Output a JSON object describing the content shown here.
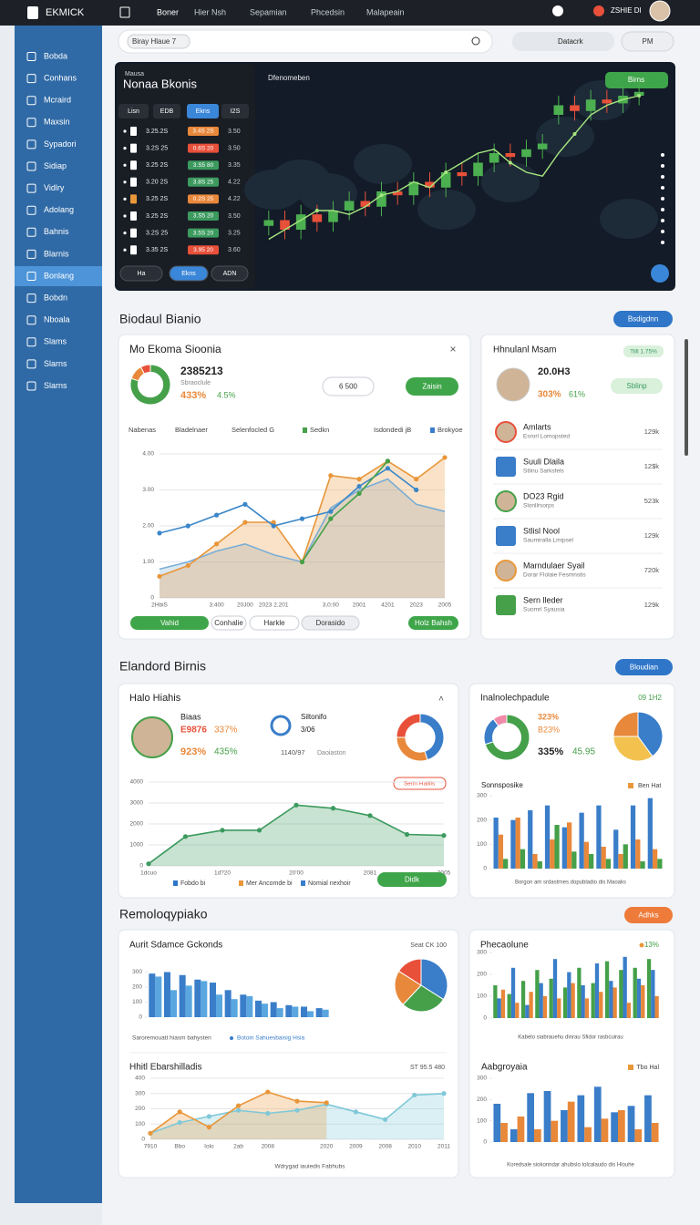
{
  "topbar": {
    "logo": "EKMICK",
    "nav": [
      "Boner",
      "Hier Nsh",
      "Sepamian",
      "Phcedsin",
      "Malapeain"
    ],
    "user": "ZSHIE DI"
  },
  "sidebar": {
    "items": [
      "Bobda",
      "Conhans",
      "Mcraird",
      "Maxsin",
      "Sypadori",
      "Sidiap",
      "Vidlry",
      "Adolang",
      "Bahnis",
      "Blarnis",
      "Bonlang",
      "Bobdn",
      "Nboala",
      "Slams",
      "Slarns",
      "Slarns"
    ],
    "active": 10
  },
  "search": {
    "placeholder": "Biray Hlaue 7",
    "filter": "Datacrk",
    "button": "PM"
  },
  "market": {
    "kicker": "Mausa",
    "title": "Nonaa Bkonis",
    "tabs": [
      "Lisn",
      "EDB",
      "Ekns",
      "I2S"
    ],
    "active_tab": 2,
    "rows": [
      {
        "cells": [
          "3.25.2S",
          "3.4S 2S",
          "3.50"
        ],
        "color": "#e8883a"
      },
      {
        "cells": [
          "3.2S 25",
          "0.6S 20",
          "3.50"
        ],
        "color": "#e8503a"
      },
      {
        "cells": [
          "3.25 2S",
          "3.S5 80",
          "3.35"
        ],
        "color": "#3c9a5f"
      },
      {
        "cells": [
          "3.20 2S",
          "3.8S 25",
          "4.22"
        ],
        "color": "#3c9a5f"
      },
      {
        "cells": [
          "3.25 2S",
          "0.2S 25",
          "4.22"
        ],
        "color": "#e8883a"
      },
      {
        "cells": [
          "3.25 2S",
          "3.S5 20",
          "3.50"
        ],
        "color": "#3c9a5f"
      },
      {
        "cells": [
          "3.2S 25",
          "3.5S 20",
          "3.25"
        ],
        "color": "#3c9a5f"
      },
      {
        "cells": [
          "3.35 2S",
          "3.95 20",
          "3.60"
        ],
        "color": "#e8503a"
      }
    ],
    "footer": [
      "Ha",
      "Ekns",
      "ADN"
    ],
    "chart_title": "Dfenomeben",
    "badge": "Birns",
    "chart": {
      "type": "candlestick",
      "up_color": "#4caf50",
      "down_color": "#e8503a",
      "ylim": [
        0,
        100
      ],
      "open": [
        22,
        25,
        20,
        28,
        24,
        30,
        35,
        32,
        40,
        38,
        45,
        42,
        50,
        48,
        55,
        60,
        58,
        62,
        80,
        85,
        82,
        88,
        86,
        90
      ],
      "close": [
        25,
        20,
        28,
        24,
        30,
        35,
        32,
        40,
        38,
        45,
        42,
        50,
        48,
        55,
        60,
        58,
        62,
        65,
        85,
        82,
        88,
        86,
        90,
        92
      ],
      "high": [
        30,
        30,
        33,
        33,
        35,
        40,
        40,
        45,
        45,
        50,
        50,
        55,
        55,
        60,
        65,
        65,
        67,
        70,
        90,
        90,
        93,
        93,
        95,
        97
      ],
      "low": [
        17,
        15,
        15,
        19,
        19,
        25,
        27,
        27,
        33,
        33,
        37,
        37,
        43,
        43,
        50,
        53,
        53,
        57,
        75,
        77,
        77,
        81,
        81,
        85
      ],
      "trend": {
        "color": "#a6e67f",
        "values": [
          15,
          20,
          25,
          30,
          30,
          28,
          32,
          38,
          40,
          45,
          42,
          50,
          55,
          60,
          62,
          55,
          50,
          48,
          60,
          70,
          80,
          85,
          88,
          90
        ]
      }
    }
  },
  "section1": {
    "heading": "Biodaul Bianio",
    "button": "Bsdigdnn"
  },
  "card_a": {
    "title": "Mo Ekoma Sioonia",
    "value": "2385213",
    "sub": "Sbraoclule",
    "pct1": "433%",
    "pct2": "4.5%",
    "buttons": [
      "6 500",
      "Zaisin"
    ],
    "header": [
      "Nabenas",
      "Bladelnaer",
      "Selenfocled G",
      "Sedkn",
      "Isdondedi jB",
      "Brokyoe"
    ],
    "donut": {
      "type": "pie",
      "donut": true,
      "values": [
        80,
        12,
        8
      ],
      "colors": [
        "#45a049",
        "#e8883a",
        "#e8503a"
      ]
    },
    "chart": {
      "type": "line",
      "grid": true,
      "categories": [
        "2HbiS",
        null,
        "3:400",
        "20J00",
        "2023 2.201",
        null,
        "3,0:00",
        "2001",
        "4201",
        "2023",
        "2005"
      ],
      "ylim": [
        0,
        4
      ],
      "yticks": [
        0,
        {
          "value": 1,
          "label": "1.00"
        },
        {
          "value": 2,
          "label": "2.00"
        },
        {
          "value": 3,
          "label": "3.00"
        },
        {
          "value": 4,
          "label": "4.00"
        }
      ],
      "series": [
        {
          "color": "#7aaed6",
          "area": true,
          "values": [
            0.8,
            1.0,
            1.3,
            1.5,
            1.2,
            1.0,
            2.5,
            3.0,
            3.3,
            2.6,
            2.4
          ]
        },
        {
          "color": "#e8963a",
          "area": true,
          "markers": true,
          "values": [
            0.6,
            0.9,
            1.5,
            2.1,
            2.1,
            1.0,
            3.4,
            3.3,
            3.8,
            3.3,
            3.9
          ]
        },
        {
          "color": "#3a86c8",
          "markers": true,
          "values": [
            1.8,
            2.0,
            2.3,
            2.6,
            2.0,
            2.2,
            2.4,
            3.1,
            3.6,
            3.0,
            null
          ]
        },
        {
          "color": "#45a049",
          "markers": true,
          "values": [
            null,
            null,
            null,
            null,
            null,
            1.0,
            2.2,
            2.9,
            3.8,
            null,
            null
          ]
        }
      ]
    },
    "footer": [
      "Vahid",
      "Conhalie",
      "Harkle",
      "Dorasido",
      "Holz Bahsh"
    ]
  },
  "card_b": {
    "title": "Hhnulanl Msam",
    "badge": "Tilll 1.75%",
    "value": "20.0H3",
    "pct1": "303%",
    "pct2": "61%",
    "button": "Sblinp",
    "items": [
      {
        "name": "Amlarts",
        "sub": "Esrorl Lomopsted",
        "value": "129k",
        "color": "#e8503a"
      },
      {
        "name": "Suuli Dlaila",
        "sub": "Stlinu Sarksfels",
        "value": "12$k",
        "color": "#3a7dc9"
      },
      {
        "name": "DO23 Rgid",
        "sub": "Slonllrsorps",
        "value": "523k",
        "color": "#45a049"
      },
      {
        "name": "Stlisl Nool",
        "sub": "Saumiralla Lmipsel",
        "value": "129k",
        "color": "#3a7dc9"
      },
      {
        "name": "Marndulaer Syail",
        "sub": "Dorar Flolaie Fesmnstis",
        "value": "720k",
        "color": "#e8983a"
      },
      {
        "name": "Sern lleder",
        "sub": "Suomrl Syausia",
        "value": "129k",
        "color": "#45a049"
      }
    ]
  },
  "section2": {
    "heading": "Elandord Birnis",
    "button": "Bloudian"
  },
  "card_c": {
    "title": "Halo Hiahis",
    "label": "Biaas",
    "v1": "E9876",
    "v2": "337%",
    "v3": "923%",
    "v4": "435%",
    "side1": "Siltonifo",
    "side2": "3/06",
    "side3": "1140/97",
    "side4": "Daoiaston",
    "badge": "Serin Halllis",
    "legend": [
      "Fobdo bi",
      "Mer Ancomde bi",
      "Nomial nexhoir"
    ],
    "button": "Didk",
    "donut": {
      "type": "pie",
      "donut": true,
      "values": [
        45,
        30,
        25
      ],
      "colors": [
        "#3a7dc9",
        "#e8883a",
        "#e8503a"
      ]
    },
    "chart": {
      "type": "line",
      "grid": true,
      "categories": [
        "1dcuo",
        null,
        "1d?20",
        null,
        "20'00",
        null,
        "2081",
        null,
        "2005"
      ],
      "ylim": [
        0,
        4000
      ],
      "yticks": [
        0,
        1000,
        2000,
        3000,
        4000
      ],
      "series": [
        {
          "color": "#3c9a5f",
          "area": true,
          "markers": true,
          "values": [
            100,
            1400,
            1700,
            1700,
            2900,
            2750,
            2400,
            1500,
            1450
          ]
        }
      ]
    }
  },
  "card_d": {
    "title": "Inalnolechpadule",
    "badge": "09 1H2",
    "v1": "323%",
    "v2": "B23%",
    "v3": "335%",
    "v4": "45.95",
    "subtitle": "Sonnsposike",
    "legend": "Ben Hat",
    "xlabel": "Borgon am srdastrnes dopubladio dis Maoaks",
    "donut": {
      "type": "pie",
      "donut": true,
      "values": [
        70,
        20,
        10
      ],
      "colors": [
        "#45a049",
        "#3a7dc9",
        "#f08aa8"
      ]
    },
    "pie": {
      "type": "pie",
      "donut": false,
      "values": [
        40,
        35,
        25
      ],
      "colors": [
        "#3a7dc9",
        "#f2c14e",
        "#e8883a"
      ]
    },
    "chart": {
      "type": "bar",
      "ylim": [
        0,
        300
      ],
      "yticks": [
        0,
        100,
        200,
        300
      ],
      "series": [
        {
          "color": "#3a7dc9",
          "values": [
            210,
            200,
            240,
            260,
            170,
            230,
            260,
            160,
            260,
            290
          ]
        },
        {
          "color": "#e8883a",
          "values": [
            140,
            210,
            60,
            120,
            190,
            110,
            90,
            60,
            120,
            80
          ]
        },
        {
          "color": "#45a049",
          "values": [
            40,
            80,
            30,
            180,
            70,
            60,
            40,
            100,
            30,
            40
          ]
        }
      ]
    }
  },
  "section3": {
    "heading": "Remoloqypiako",
    "button": "Adhks"
  },
  "card_e": {
    "title": "Aurit Sdamce Gckonds",
    "badge": "Seat CK 100",
    "foot1": "Saroremouatt hiasm bahysten",
    "foot2": "Botoin Sahuesbaisig Hsia",
    "bars": {
      "type": "bar",
      "ylim": [
        0,
        400
      ],
      "yticks": [
        0,
        100,
        200,
        300
      ],
      "series": [
        {
          "color": "#3a7dc9",
          "values": [
            290,
            300,
            280,
            250,
            230,
            180,
            150,
            110,
            100,
            80,
            70,
            60
          ]
        },
        {
          "color": "#5aa7e0",
          "values": [
            270,
            180,
            210,
            240,
            150,
            120,
            140,
            90,
            60,
            70,
            40,
            50
          ]
        }
      ]
    },
    "pie": {
      "type": "pie",
      "donut": false,
      "values": [
        34,
        28,
        22,
        16
      ],
      "colors": [
        "#3a7dc9",
        "#45a049",
        "#e8883a",
        "#e8503a"
      ]
    },
    "title2": "Hhitl Ebarshilladis",
    "badge2": "ST 95.5 480",
    "xlabel": "Wdrygad iauiedis Fabhubs",
    "chart": {
      "type": "line",
      "grid": true,
      "categories": [
        "7910",
        "Bbo",
        "Iolo",
        "2ab",
        "2008",
        null,
        "2020",
        "2009",
        "2008",
        "2010",
        "2011"
      ],
      "ylim": [
        0,
        400
      ],
      "yticks": [
        0,
        100,
        200,
        300,
        400
      ],
      "series": [
        {
          "color": "#7fc8d8",
          "area": true,
          "markers": true,
          "values": [
            40,
            110,
            150,
            190,
            170,
            190,
            230,
            180,
            130,
            290,
            300
          ]
        },
        {
          "color": "#e8963a",
          "area": true,
          "markers": true,
          "values": [
            40,
            180,
            80,
            220,
            310,
            250,
            240,
            null,
            null,
            null,
            null
          ]
        }
      ]
    }
  },
  "card_f": {
    "title": "Phecaolune",
    "badge": "13%",
    "xlabel": "Kabelo siabrauehu dinrau Sfidor rasbcuirau",
    "title2": "Aabgroyaia",
    "legend": "Tbo Hal",
    "xlabel2": "Koredsale siokonndar ahubslo tolcalaudo dis Hlouhe",
    "chart": {
      "type": "bar",
      "ylim": [
        0,
        300
      ],
      "yticks": [
        0,
        100,
        200,
        300
      ],
      "series": [
        {
          "color": "#45a049",
          "values": [
            150,
            110,
            170,
            220,
            180,
            140,
            230,
            160,
            260,
            220,
            230,
            270
          ]
        },
        {
          "color": "#3a7dc9",
          "values": [
            90,
            230,
            60,
            160,
            270,
            210,
            150,
            250,
            170,
            280,
            180,
            220
          ]
        },
        {
          "color": "#e8883a",
          "values": [
            130,
            70,
            120,
            100,
            90,
            160,
            90,
            120,
            140,
            70,
            150,
            100
          ]
        }
      ]
    },
    "chart2": {
      "type": "bar",
      "ylim": [
        0,
        300
      ],
      "yticks": [
        0,
        100,
        200,
        300
      ],
      "series": [
        {
          "color": "#3a7dc9",
          "values": [
            180,
            60,
            230,
            240,
            150,
            220,
            260,
            140,
            170,
            220
          ]
        },
        {
          "color": "#e8883a",
          "values": [
            90,
            120,
            60,
            100,
            190,
            70,
            110,
            150,
            60,
            90
          ]
        }
      ]
    }
  }
}
